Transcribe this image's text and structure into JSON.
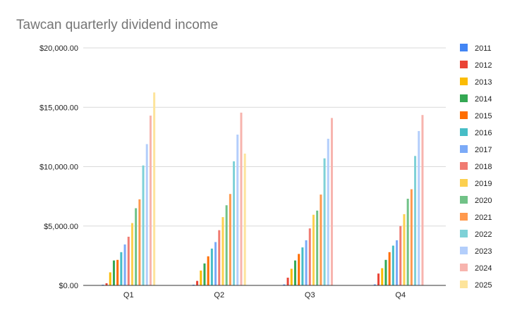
{
  "chart_data": {
    "type": "bar",
    "title": "Tawcan quarterly dividend income",
    "xlabel": "",
    "ylabel": "",
    "categories": [
      "Q1",
      "Q2",
      "Q3",
      "Q4"
    ],
    "ylim": [
      0,
      20000
    ],
    "yticks": [
      0,
      5000,
      10000,
      15000,
      20000
    ],
    "ytick_labels": [
      "$0.00",
      "$5,000.00",
      "$10,000.00",
      "$15,000.00",
      "$20,000.00"
    ],
    "grid": true,
    "legend": "right",
    "series": [
      {
        "name": "2011",
        "color": "#4285f4",
        "values": [
          60,
          60,
          80,
          80
        ]
      },
      {
        "name": "2012",
        "color": "#ea4335",
        "values": [
          180,
          380,
          650,
          1000
        ]
      },
      {
        "name": "2013",
        "color": "#fbbc04",
        "values": [
          1100,
          1250,
          1400,
          1450
        ]
      },
      {
        "name": "2014",
        "color": "#34a853",
        "values": [
          2100,
          1850,
          2100,
          2150
        ]
      },
      {
        "name": "2015",
        "color": "#ff6d01",
        "values": [
          2150,
          2450,
          2650,
          2800
        ]
      },
      {
        "name": "2016",
        "color": "#46bdc6",
        "values": [
          2800,
          3100,
          3200,
          3350
        ]
      },
      {
        "name": "2017",
        "color": "#7baaf7",
        "values": [
          3450,
          3650,
          3800,
          3800
        ]
      },
      {
        "name": "2018",
        "color": "#f07b72",
        "values": [
          4100,
          4650,
          4800,
          5000
        ]
      },
      {
        "name": "2019",
        "color": "#fcd04f",
        "values": [
          5250,
          5750,
          5950,
          6000
        ]
      },
      {
        "name": "2020",
        "color": "#71c287",
        "values": [
          6500,
          6750,
          6300,
          7300
        ]
      },
      {
        "name": "2021",
        "color": "#ff994d",
        "values": [
          7250,
          7700,
          7650,
          8100
        ]
      },
      {
        "name": "2022",
        "color": "#7ed1d7",
        "values": [
          10100,
          10450,
          10700,
          10900
        ]
      },
      {
        "name": "2023",
        "color": "#b3cefb",
        "values": [
          11900,
          12700,
          12350,
          13000
        ]
      },
      {
        "name": "2024",
        "color": "#f7b4ae",
        "values": [
          14300,
          14550,
          14100,
          14350
        ]
      },
      {
        "name": "2025",
        "color": "#fde49b",
        "values": [
          16250,
          11100,
          null,
          null
        ]
      }
    ]
  }
}
